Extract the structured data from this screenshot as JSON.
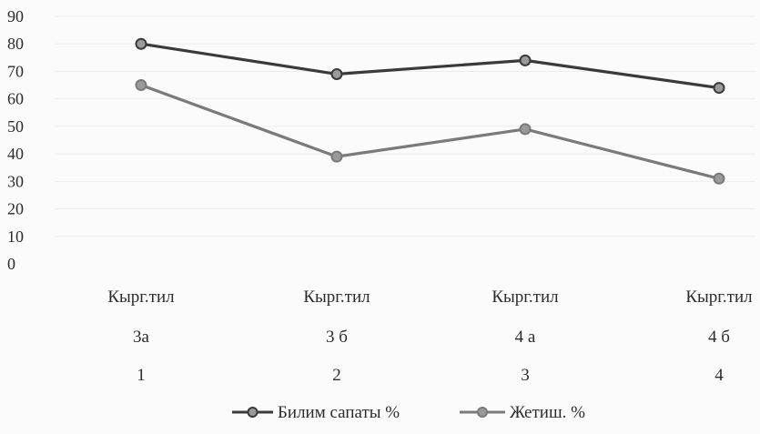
{
  "chart_data": {
    "type": "line",
    "categories": [
      [
        "Кырг.тил",
        "3а",
        "1"
      ],
      [
        "Кырг.тил",
        "3 б",
        "2"
      ],
      [
        "Кырг.тил",
        "4 а",
        "3"
      ],
      [
        "Кырг.тил",
        "4 б",
        "4"
      ]
    ],
    "series": [
      {
        "name": "Билим сапаты %",
        "values": [
          80,
          69,
          74,
          64
        ],
        "color": "#3a3a3a"
      },
      {
        "name": "Жетиш. %",
        "values": [
          65,
          39,
          49,
          31
        ],
        "color": "#7a7a7a"
      }
    ],
    "ylim": [
      0,
      90
    ],
    "yticks": [
      0,
      10,
      20,
      30,
      40,
      50,
      60,
      70,
      80,
      90
    ],
    "grid": "horizontal faint",
    "legend_position": "bottom"
  }
}
